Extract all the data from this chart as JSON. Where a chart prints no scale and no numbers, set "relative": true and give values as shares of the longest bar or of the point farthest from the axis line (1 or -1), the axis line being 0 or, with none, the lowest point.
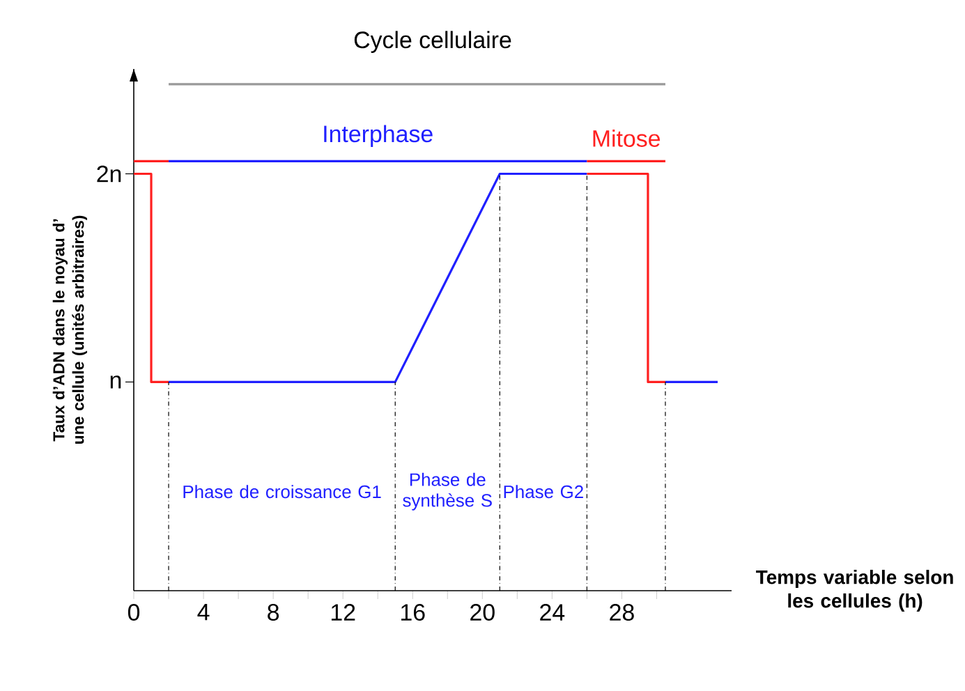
{
  "chart_data": {
    "type": "line",
    "title": "Cycle cellulaire",
    "xlabel": "Temps variable selon les cellules (h)",
    "ylabel": "Taux d’ADN dans le noyau d’ une cellule (unités arbitraires)",
    "relative": true,
    "xlim": [
      0,
      34.3
    ],
    "xticks": [
      0,
      {
        "value": 2,
        "label": null
      },
      4,
      {
        "value": 6,
        "label": null
      },
      8,
      {
        "value": 10,
        "label": null
      },
      12,
      {
        "value": 14,
        "label": null
      },
      16,
      {
        "value": 18,
        "label": null
      },
      20,
      {
        "value": 22,
        "label": null
      },
      24,
      {
        "value": 26,
        "label": null
      },
      28,
      {
        "value": 30,
        "label": null
      }
    ],
    "grid": false,
    "marker": "none",
    "series": [
      {
        "color": "#ff2020",
        "x": [
          0,
          1,
          1,
          2
        ],
        "values": [
          0.823,
          0.823,
          0.412,
          0.412
        ]
      },
      {
        "color": "#2020ff",
        "x": [
          2,
          15,
          21,
          26
        ],
        "values": [
          0.412,
          0.412,
          0.823,
          0.823
        ]
      },
      {
        "color": "#ff2020",
        "x": [
          26,
          29.5,
          29.5,
          30.5
        ],
        "values": [
          0.823,
          0.823,
          0.412,
          0.412
        ]
      },
      {
        "color": "#2020ff",
        "x": [
          30.5,
          33.5
        ],
        "values": [
          0.412,
          0.412
        ]
      },
      {
        "name": "Interphase",
        "color": "#2020ff",
        "x": [
          2,
          26
        ],
        "values": [
          0.848,
          0.848
        ]
      },
      {
        "name": "Mitose",
        "color": "#ff2020",
        "x": [
          0,
          2,
          14,
          26,
          30.5
        ],
        "values": [
          0.848,
          0.848,
          null,
          0.848,
          0.848
        ]
      },
      {
        "color": "#999999",
        "x": [
          2,
          30.5
        ],
        "values": [
          1,
          1
        ]
      },
      {
        "color": "#000000",
        "line_style": "dashed",
        "x": [
          2,
          2
        ],
        "values": [
          0,
          0.412
        ]
      },
      {
        "color": "#000000",
        "line_style": "dashed",
        "x": [
          15,
          15
        ],
        "values": [
          0,
          0.412
        ]
      },
      {
        "color": "#000000",
        "line_style": "dashed",
        "x": [
          21,
          21
        ],
        "values": [
          0,
          0.823
        ]
      },
      {
        "color": "#000000",
        "line_style": "dashed",
        "x": [
          26,
          26
        ],
        "values": [
          0,
          0.823
        ]
      },
      {
        "color": "#000000",
        "line_style": "dashed",
        "x": [
          30.5,
          30.5
        ],
        "values": [
          0,
          0.412
        ]
      }
    ],
    "annotations": [
      "n",
      "2n",
      "Phase de croissance G1",
      "Phase de synthèse S",
      "Phase G2"
    ]
  }
}
